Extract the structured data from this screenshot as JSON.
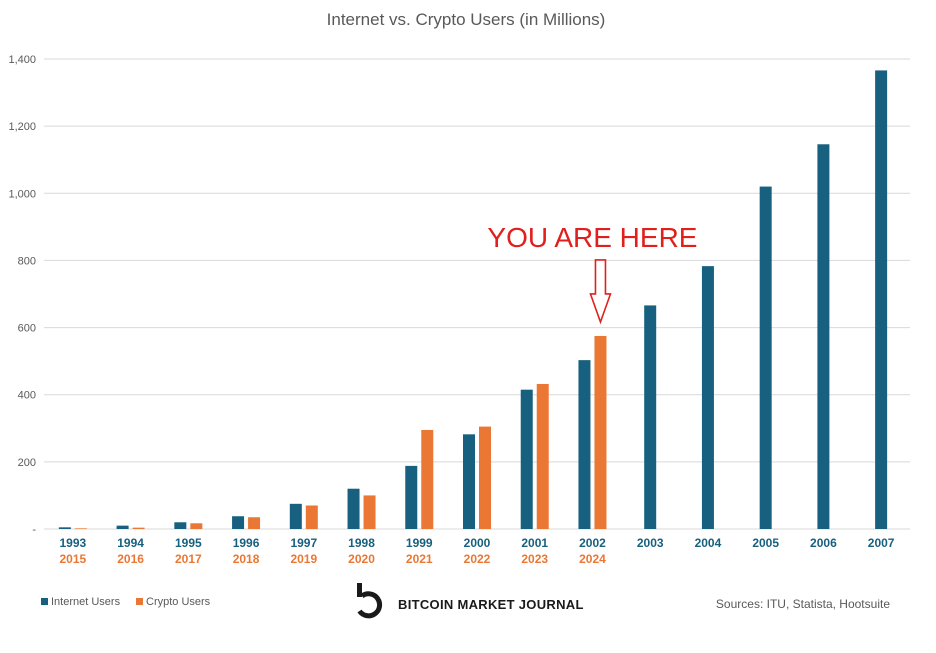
{
  "chart_data": {
    "type": "bar",
    "title": "Internet vs. Crypto Users (in Millions)",
    "xlabel": "",
    "ylabel": "",
    "ylim": [
      0,
      1400
    ],
    "yticks": [
      0,
      200,
      400,
      600,
      800,
      1000,
      1200,
      1400
    ],
    "ytick_labels": [
      "-",
      "200",
      "400",
      "600",
      "800",
      "1,000",
      "1,200",
      "1,400"
    ],
    "grid": true,
    "categories": [
      "1993",
      "1994",
      "1995",
      "1996",
      "1997",
      "1998",
      "1999",
      "2000",
      "2001",
      "2002",
      "2003",
      "2004",
      "2005",
      "2006",
      "2007"
    ],
    "secondary_categories": [
      "2015",
      "2016",
      "2017",
      "2018",
      "2019",
      "2020",
      "2021",
      "2022",
      "2023",
      "2024",
      "",
      "",
      "",
      "",
      ""
    ],
    "series": [
      {
        "name": "Internet Users",
        "color": "#17607f",
        "values": [
          5,
          10,
          20,
          38,
          75,
          120,
          188,
          282,
          415,
          503,
          666,
          783,
          1020,
          1146,
          1366
        ]
      },
      {
        "name": "Crypto Users",
        "color": "#ea7733",
        "values": [
          2,
          4,
          17,
          35,
          70,
          100,
          295,
          305,
          432,
          575,
          null,
          null,
          null,
          null,
          null
        ]
      }
    ],
    "legend_position": "bottom-left",
    "annotation": {
      "text": "YOU ARE HERE",
      "color": "#e0201c",
      "category": "2002"
    }
  },
  "branding": {
    "logo_icon": "bitcoin-market-journal-logo-icon",
    "name": "BITCOIN MARKET JOURNAL"
  },
  "sources": "Sources: ITU, Statista, Hootsuite"
}
